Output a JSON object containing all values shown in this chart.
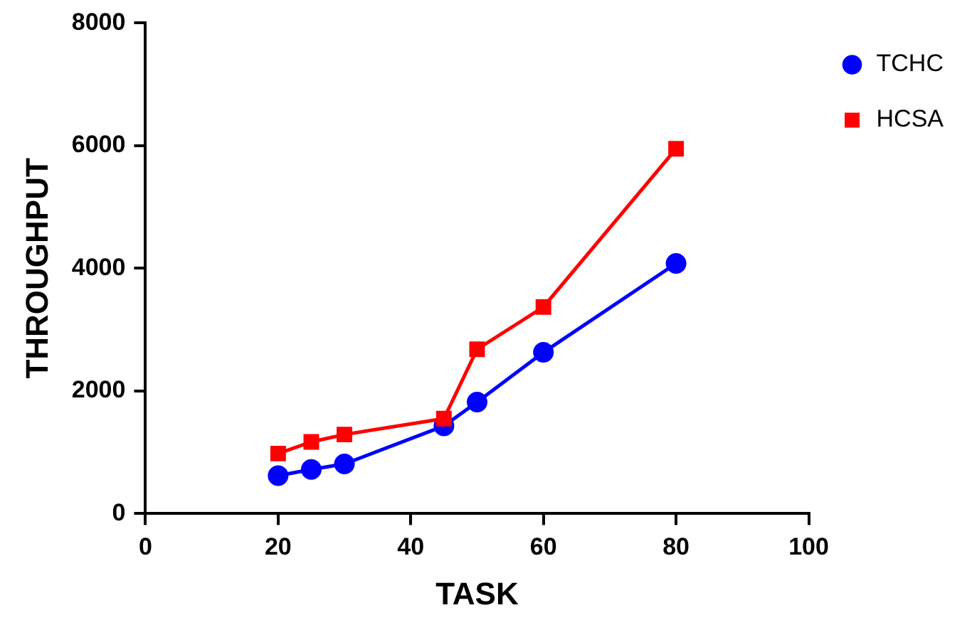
{
  "chart_data": {
    "type": "line",
    "xlabel": "TASK",
    "ylabel": "THROUGHPUT",
    "x": [
      20,
      25,
      30,
      45,
      50,
      60,
      80
    ],
    "series": [
      {
        "name": "TCHC",
        "color": "#0000ff",
        "marker": "circle",
        "values": [
          620,
          720,
          810,
          1430,
          1820,
          2630,
          4080
        ]
      },
      {
        "name": "HCSA",
        "color": "#ff0000",
        "marker": "square",
        "values": [
          980,
          1170,
          1290,
          1550,
          2680,
          3370,
          5950
        ]
      }
    ],
    "xlim": [
      0,
      100
    ],
    "xticks": [
      0,
      20,
      40,
      60,
      80,
      100
    ],
    "ylim": [
      0,
      8000
    ],
    "yticks": [
      0,
      2000,
      4000,
      6000,
      8000
    ],
    "grid": false,
    "legend": "top right",
    "line_style": "solid"
  }
}
